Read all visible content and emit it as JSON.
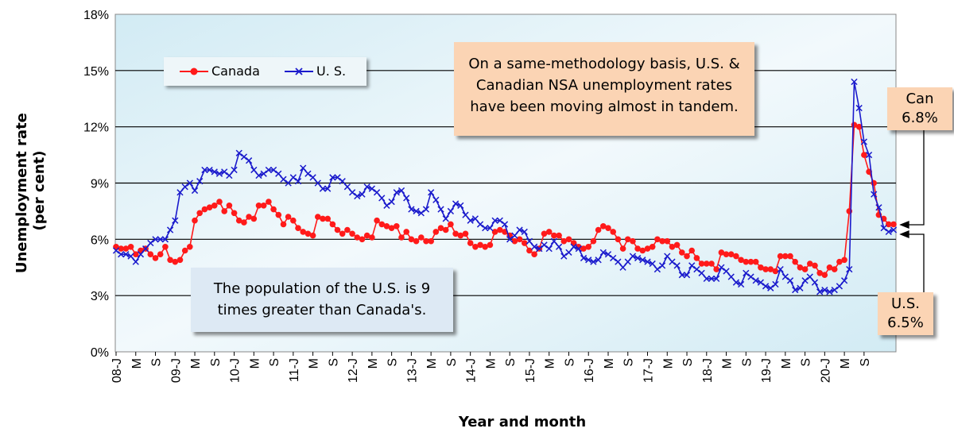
{
  "chart_data": {
    "type": "line",
    "xlabel": "Year and month",
    "ylabel": "Unemployment rate\n(per cent)",
    "ylim": [
      0,
      18
    ],
    "y_ticks": [
      "0%",
      "3%",
      "6%",
      "9%",
      "12%",
      "15%",
      "18%"
    ],
    "x_ticks": [
      "08-J",
      "M",
      "S",
      "09-J",
      "M",
      "S",
      "10-J",
      "M",
      "S",
      "11-J",
      "M",
      "S",
      "12-J",
      "M",
      "S",
      "13-J",
      "M",
      "S",
      "14-J",
      "M",
      "S",
      "15-J",
      "M",
      "S",
      "16-J",
      "M",
      "S",
      "17-J",
      "M",
      "S",
      "18-J",
      "M",
      "S",
      "19-J",
      "M",
      "S",
      "20-J",
      "M",
      "S"
    ],
    "grid": true,
    "legend": "top-left",
    "series": [
      {
        "name": "Canada",
        "color": "#ff1a1a",
        "marker": "dot",
        "values": [
          5.6,
          5.5,
          5.5,
          5.6,
          5.2,
          5.4,
          5.5,
          5.2,
          5.0,
          5.2,
          5.6,
          4.9,
          4.8,
          4.9,
          5.4,
          5.6,
          7.0,
          7.4,
          7.6,
          7.7,
          7.8,
          8.0,
          7.5,
          7.8,
          7.4,
          7.0,
          6.9,
          7.2,
          7.1,
          7.8,
          7.8,
          8.0,
          7.6,
          7.3,
          6.8,
          7.2,
          7.0,
          6.6,
          6.4,
          6.3,
          6.2,
          7.2,
          7.1,
          7.1,
          6.8,
          6.5,
          6.3,
          6.5,
          6.3,
          6.1,
          6.0,
          6.2,
          6.1,
          7.0,
          6.8,
          6.7,
          6.6,
          6.7,
          6.1,
          6.4,
          6.0,
          5.9,
          6.1,
          5.9,
          5.9,
          6.4,
          6.6,
          6.5,
          6.8,
          6.3,
          6.2,
          6.3,
          5.8,
          5.6,
          5.7,
          5.6,
          5.7,
          6.4,
          6.5,
          6.4,
          6.2,
          5.9,
          6.0,
          5.8,
          5.4,
          5.2,
          5.5,
          6.3,
          6.4,
          6.2,
          6.2,
          5.9,
          6.0,
          5.8,
          5.6,
          5.5,
          5.6,
          5.9,
          6.5,
          6.7,
          6.6,
          6.4,
          6.0,
          5.5,
          6.0,
          5.9,
          5.5,
          5.4,
          5.5,
          5.6,
          6.0,
          5.9,
          5.9,
          5.6,
          5.7,
          5.3,
          5.1,
          5.4,
          5.0,
          4.7,
          4.7,
          4.7,
          4.4,
          5.3,
          5.2,
          5.2,
          5.1,
          4.9,
          4.8,
          4.8,
          4.8,
          4.5,
          4.4,
          4.4,
          4.3,
          5.1,
          5.1,
          5.1,
          4.8,
          4.5,
          4.4,
          4.7,
          4.6,
          4.2,
          4.1,
          4.5,
          4.4,
          4.8,
          4.9,
          7.5,
          12.1,
          12.0,
          10.5,
          9.6,
          9.0,
          7.3,
          7.1,
          6.8,
          6.8
        ]
      },
      {
        "name": "U. S.",
        "color": "#1a1acc",
        "marker": "x",
        "values": [
          5.4,
          5.2,
          5.2,
          5.1,
          4.8,
          5.2,
          5.5,
          5.8,
          6.0,
          6.0,
          6.0,
          6.5,
          7.0,
          8.5,
          8.8,
          9.0,
          8.6,
          9.1,
          9.7,
          9.7,
          9.6,
          9.5,
          9.6,
          9.4,
          9.7,
          10.6,
          10.4,
          10.2,
          9.7,
          9.4,
          9.5,
          9.7,
          9.7,
          9.5,
          9.2,
          9.0,
          9.3,
          9.1,
          9.8,
          9.5,
          9.3,
          9.0,
          8.7,
          8.7,
          9.3,
          9.3,
          9.1,
          8.8,
          8.5,
          8.3,
          8.4,
          8.8,
          8.7,
          8.5,
          8.2,
          7.8,
          8.0,
          8.5,
          8.6,
          8.2,
          7.6,
          7.5,
          7.4,
          7.6,
          8.5,
          8.1,
          7.6,
          7.1,
          7.5,
          7.9,
          7.8,
          7.3,
          7.0,
          7.1,
          6.8,
          6.6,
          6.6,
          7.0,
          7.0,
          6.8,
          6.0,
          6.2,
          6.5,
          6.4,
          5.9,
          5.6,
          5.5,
          5.7,
          5.5,
          5.9,
          5.6,
          5.1,
          5.3,
          5.6,
          5.5,
          5.0,
          4.9,
          4.8,
          4.9,
          5.3,
          5.2,
          5.0,
          4.8,
          4.5,
          4.8,
          5.1,
          5.0,
          4.9,
          4.8,
          4.7,
          4.4,
          4.6,
          5.1,
          4.8,
          4.6,
          4.1,
          4.1,
          4.6,
          4.4,
          4.2,
          3.9,
          3.9,
          3.9,
          4.5,
          4.3,
          4.0,
          3.7,
          3.6,
          4.2,
          4.0,
          3.8,
          3.7,
          3.5,
          3.4,
          3.6,
          4.4,
          4.0,
          3.8,
          3.3,
          3.4,
          3.8,
          4.0,
          3.7,
          3.2,
          3.3,
          3.2,
          3.3,
          3.5,
          3.8,
          4.4,
          14.4,
          13.0,
          11.2,
          10.5,
          8.4,
          7.7,
          6.6,
          6.4,
          6.5
        ]
      }
    ],
    "annotations": {
      "top_note": "On a same-methodology basis, U.S. & Canadian NSA unemployment rates have been moving almost in tandem.",
      "bottom_note": "The population of the U.S. is  9 times greater than Canada's.",
      "can_callout": [
        "Can",
        "6.8%"
      ],
      "us_callout": [
        "U.S.",
        "6.5%"
      ]
    }
  }
}
